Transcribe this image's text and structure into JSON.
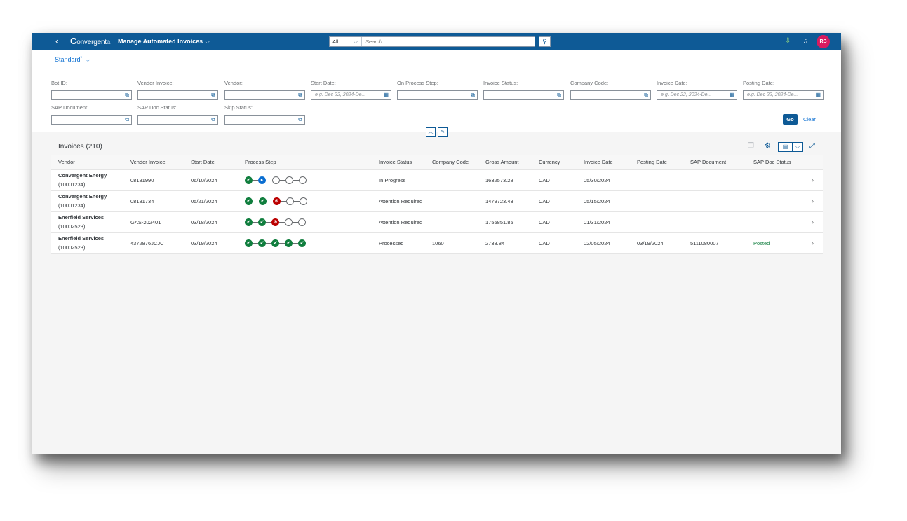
{
  "shell": {
    "back_glyph": "‹",
    "logo_initial": "C",
    "logo_mid": "onvergent",
    "logo_tail": "a",
    "app_title": "Manage Automated Invoices",
    "title_chevron": "⌵",
    "search_scope": "All",
    "search_placeholder": "Search",
    "user_initials": "RB"
  },
  "filters": {
    "variant": "Standard",
    "variant_star": "*",
    "fields": [
      {
        "label": "Bot ID:",
        "placeholder": ""
      },
      {
        "label": "Vendor Invoice:",
        "placeholder": ""
      },
      {
        "label": "Vendor:",
        "placeholder": ""
      },
      {
        "label": "Start Date:",
        "placeholder": "e.g. Dec 22, 2024-De..."
      },
      {
        "label": "On Process Step:",
        "placeholder": ""
      },
      {
        "label": "Invoice Status:",
        "placeholder": ""
      },
      {
        "label": "Company Code:",
        "placeholder": ""
      },
      {
        "label": "Invoice Date:",
        "placeholder": "e.g. Dec 22, 2024-De..."
      },
      {
        "label": "Posting Date:",
        "placeholder": "e.g. Dec 22, 2024-De..."
      },
      {
        "label": "SAP Document:",
        "placeholder": ""
      },
      {
        "label": "SAP Doc Status:",
        "placeholder": ""
      },
      {
        "label": "Skip Status:",
        "placeholder": ""
      }
    ],
    "go_label": "Go",
    "clear_label": "Clear"
  },
  "table": {
    "title": "Invoices (210)",
    "columns": [
      "Vendor",
      "Vendor Invoice",
      "Start Date",
      "Process Step",
      "Invoice Status",
      "Company Code",
      "Gross Amount",
      "Currency",
      "Invoice Date",
      "Posting Date",
      "SAP Document",
      "SAP Doc Status"
    ],
    "rows": [
      {
        "vendor": "Convergent Energy",
        "vendor_id": "(10001234)",
        "vendor_invoice": "08181990",
        "start_date": "06/10/2024",
        "steps": [
          "done",
          "active",
          "todo",
          "todo",
          "todo"
        ],
        "invoice_status": "In Progress",
        "company_code": "",
        "gross_amount": "1632573.28",
        "currency": "CAD",
        "invoice_date": "05/30/2024",
        "posting_date": "",
        "sap_document": "",
        "sap_doc_status": ""
      },
      {
        "vendor": "Convergent Energy",
        "vendor_id": "(10001234)",
        "vendor_invoice": "08181734",
        "start_date": "05/21/2024",
        "steps": [
          "done",
          "done",
          "error",
          "todo",
          "todo"
        ],
        "invoice_status": "Attention Required",
        "company_code": "",
        "gross_amount": "1479723.43",
        "currency": "CAD",
        "invoice_date": "05/15/2024",
        "posting_date": "",
        "sap_document": "",
        "sap_doc_status": ""
      },
      {
        "vendor": "Enerfield Services",
        "vendor_id": "(10002523)",
        "vendor_invoice": "GAS-202401",
        "start_date": "03/18/2024",
        "steps": [
          "done",
          "done",
          "error",
          "todo",
          "todo"
        ],
        "invoice_status": "Attention Required",
        "company_code": "",
        "gross_amount": "1755851.85",
        "currency": "CAD",
        "invoice_date": "01/31/2024",
        "posting_date": "",
        "sap_document": "",
        "sap_doc_status": ""
      },
      {
        "vendor": "Enerfield Services",
        "vendor_id": "(10002523)",
        "vendor_invoice": "4372876JCJC",
        "start_date": "03/19/2024",
        "steps": [
          "done",
          "done",
          "done",
          "done",
          "done"
        ],
        "invoice_status": "Processed",
        "company_code": "1060",
        "gross_amount": "2738.84",
        "currency": "CAD",
        "invoice_date": "02/05/2024",
        "posting_date": "03/19/2024",
        "sap_document": "5111080007",
        "sap_doc_status": "Posted"
      }
    ]
  },
  "colors": {
    "shell": "#0e5a96",
    "step_done": "#107e3e",
    "step_active": "#0a6ed1",
    "step_error": "#bb0000",
    "avatar": "#d81b60",
    "posted": "#107e3e"
  }
}
